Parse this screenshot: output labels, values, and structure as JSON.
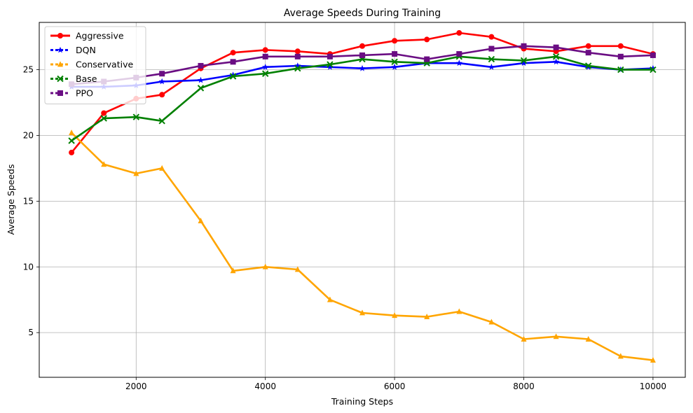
{
  "chart_data": {
    "type": "line",
    "title": "Average Speeds During Training",
    "xlabel": "Training Steps",
    "ylabel": "Average Speeds",
    "xlim": [
      500,
      10500
    ],
    "ylim": [
      1.6,
      28.6
    ],
    "xticks": [
      2000,
      4000,
      6000,
      8000,
      10000
    ],
    "yticks": [
      5,
      10,
      15,
      20,
      25
    ],
    "grid": true,
    "legend_position": "top-left",
    "x": [
      1000,
      1500,
      2000,
      2400,
      3000,
      3500,
      4000,
      4500,
      5000,
      5500,
      6000,
      6500,
      7000,
      7500,
      8000,
      8500,
      9000,
      9500,
      10000
    ],
    "series": [
      {
        "name": "Aggressive",
        "color": "#ff0000",
        "marker": "circle",
        "values": [
          18.7,
          21.7,
          22.8,
          23.1,
          25.1,
          26.3,
          26.5,
          26.4,
          26.2,
          26.8,
          27.2,
          27.3,
          27.8,
          27.5,
          26.6,
          26.4,
          26.8,
          26.8,
          26.2
        ]
      },
      {
        "name": "DQN",
        "color": "#0000ff",
        "marker": "star",
        "values": [
          23.7,
          23.7,
          23.8,
          24.1,
          24.2,
          24.6,
          25.2,
          25.3,
          25.2,
          25.1,
          25.2,
          25.5,
          25.5,
          25.2,
          25.5,
          25.6,
          25.2,
          25.0,
          25.1
        ]
      },
      {
        "name": "Conservative",
        "color": "#ffa500",
        "marker": "triangle",
        "values": [
          20.2,
          17.8,
          17.1,
          17.5,
          13.5,
          9.7,
          10.0,
          9.8,
          7.5,
          6.5,
          6.3,
          6.2,
          6.6,
          5.8,
          4.5,
          4.7,
          4.5,
          3.2,
          2.9
        ]
      },
      {
        "name": "Base",
        "color": "#008000",
        "marker": "x",
        "values": [
          19.6,
          21.3,
          21.4,
          21.1,
          23.6,
          24.5,
          24.7,
          25.1,
          25.4,
          25.8,
          25.6,
          25.5,
          26.0,
          25.8,
          25.7,
          26.0,
          25.3,
          25.0,
          25.0
        ]
      },
      {
        "name": "PPO",
        "color": "#6a0d83",
        "marker": "square",
        "values": [
          23.9,
          24.1,
          24.4,
          24.7,
          25.3,
          25.6,
          26.0,
          26.0,
          26.0,
          26.1,
          26.2,
          25.8,
          26.2,
          26.6,
          26.8,
          26.7,
          26.3,
          26.0,
          26.1
        ]
      }
    ]
  }
}
